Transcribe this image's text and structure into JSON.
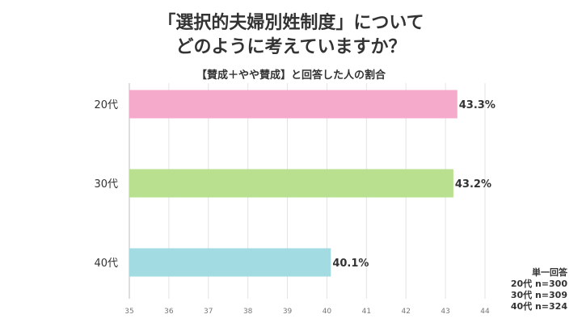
{
  "header": {
    "title_line1": "「選択的夫婦別姓制度」について",
    "title_line2": "どのように考えていますか？",
    "subtitle": "【賛成＋やや賛成】と回答した人の割合"
  },
  "chart_data": {
    "type": "bar",
    "orientation": "horizontal",
    "categories": [
      "20代",
      "30代",
      "40代"
    ],
    "values": [
      43.3,
      43.2,
      40.1
    ],
    "value_labels": [
      "43.3%",
      "43.2%",
      "40.1%"
    ],
    "colors": [
      "#f5a9cb",
      "#b8e08e",
      "#a3dbe3"
    ],
    "xlim": [
      35,
      44
    ],
    "xticks": [
      "35",
      "36",
      "37",
      "38",
      "39",
      "40",
      "41",
      "42",
      "43",
      "44"
    ],
    "grid": true,
    "title": "「選択的夫婦別姓制度」についてどのように考えていますか？",
    "xlabel": "",
    "ylabel": ""
  },
  "notes": {
    "line1": "単一回答",
    "line2": "20代 n=300",
    "line3": "30代 n=309",
    "line4": "40代 n=324"
  }
}
